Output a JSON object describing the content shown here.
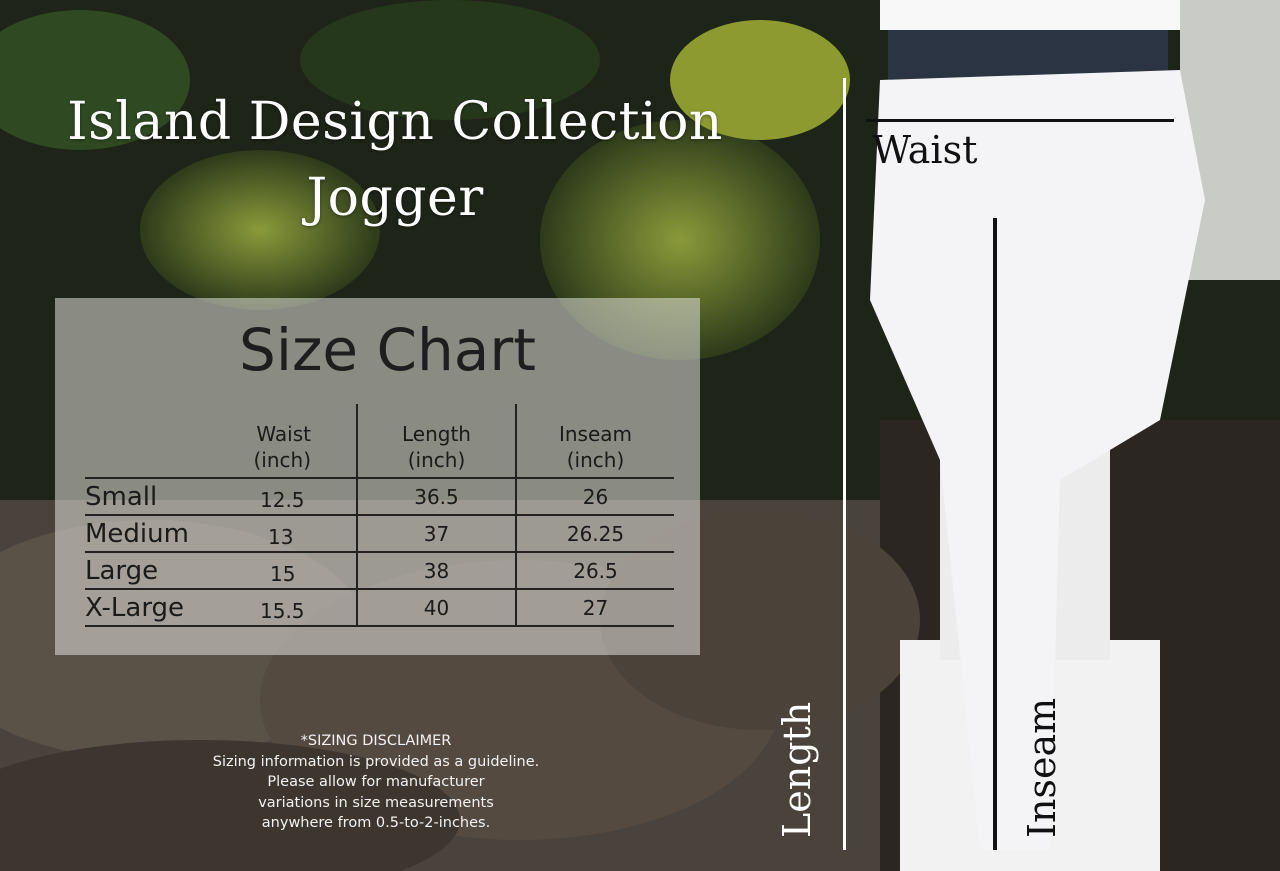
{
  "title": {
    "line1": "Island Design Collection",
    "line2": "Jogger"
  },
  "size_chart": {
    "title": "Size Chart",
    "columns": [
      {
        "name": "Waist",
        "unit": "(inch)"
      },
      {
        "name": "Length",
        "unit": "(inch)"
      },
      {
        "name": "Inseam",
        "unit": "(inch)"
      }
    ],
    "rows": [
      {
        "size": "Small",
        "waist": "12.5",
        "length": "36.5",
        "inseam": "26"
      },
      {
        "size": "Medium",
        "waist": "13",
        "length": "37",
        "inseam": "26.25"
      },
      {
        "size": "Large",
        "waist": "15",
        "length": "38",
        "inseam": "26.5"
      },
      {
        "size": "X-Large",
        "waist": "15.5",
        "length": "40",
        "inseam": "27"
      }
    ]
  },
  "disclaimer": {
    "heading": "*SIZING DISCLAIMER",
    "lines": [
      "Sizing information is provided as a guideline.",
      "Please allow for manufacturer",
      "variations in size measurements",
      "anywhere from 0.5-to-2-inches."
    ]
  },
  "measurements": {
    "waist": "Waist",
    "length": "Length",
    "inseam": "Inseam"
  },
  "colors": {
    "panel": "#e1e1dc",
    "text_dark": "#1a1a1a",
    "pants": "#f4f4f6"
  }
}
